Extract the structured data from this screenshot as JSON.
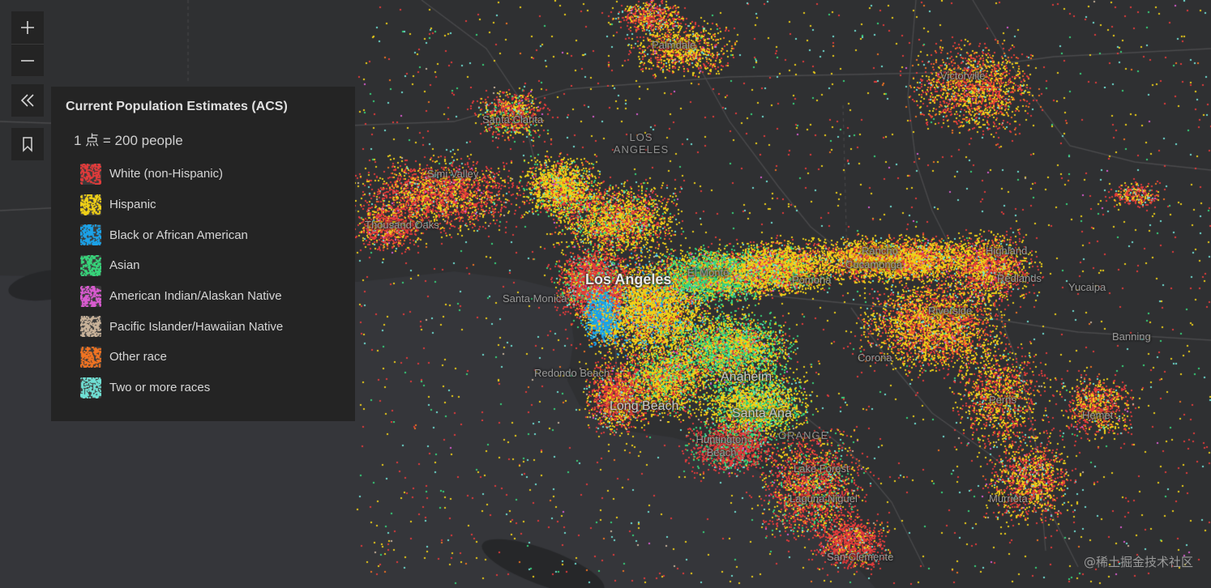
{
  "map": {
    "colors": {
      "background": "#2b2c2e",
      "land": "#2f3032",
      "ocean": "#35363a",
      "roads": "#4b4b4d",
      "white": "#e23b3b",
      "hispanic": "#f0d017",
      "black": "#1ba2e8",
      "asian": "#37d47a",
      "native": "#d95bd0",
      "pacific": "#c9b39a",
      "other": "#f07322",
      "multi": "#6fe0d4"
    },
    "labels": [
      {
        "id": "palmdale",
        "text": "Palmdale"
      },
      {
        "id": "victorville",
        "text": "Victorville"
      },
      {
        "id": "santa-clarita",
        "text": "Santa Clarita"
      },
      {
        "id": "los-angeles-region",
        "text": "LOS ANGELES"
      },
      {
        "id": "simi-valley",
        "text": "Simi Valley"
      },
      {
        "id": "thousand-oaks",
        "text": "Thousand Oaks"
      },
      {
        "id": "rancho",
        "text": "Rancho"
      },
      {
        "id": "cucamonga",
        "text": "Cucamonga"
      },
      {
        "id": "highland",
        "text": "Highland"
      },
      {
        "id": "el-monte",
        "text": "El Monte"
      },
      {
        "id": "pomona",
        "text": "Pomona"
      },
      {
        "id": "redlands",
        "text": "Redlands"
      },
      {
        "id": "yucaipa",
        "text": "Yucaipa"
      },
      {
        "id": "los-angeles",
        "text": "Los Angeles"
      },
      {
        "id": "santa-monica",
        "text": "Santa Monica"
      },
      {
        "id": "riverside",
        "text": "Riverside"
      },
      {
        "id": "banning",
        "text": "Banning"
      },
      {
        "id": "corona",
        "text": "Corona"
      },
      {
        "id": "redondo-beach",
        "text": "Redondo Beach"
      },
      {
        "id": "anaheim",
        "text": "Anaheim"
      },
      {
        "id": "perris",
        "text": "Perris"
      },
      {
        "id": "long-beach",
        "text": "Long Beach"
      },
      {
        "id": "hemet",
        "text": "Hemet"
      },
      {
        "id": "santa-ana",
        "text": "Santa Ana"
      },
      {
        "id": "huntington-beach",
        "text": "Huntington Beach"
      },
      {
        "id": "orange",
        "text": "ORANGE"
      },
      {
        "id": "lake-forest",
        "text": "Lake Forest"
      },
      {
        "id": "laguna-niguel",
        "text": "Laguna Niguel"
      },
      {
        "id": "murrieta",
        "text": "Murrieta"
      },
      {
        "id": "san-clemente",
        "text": "San Clemente"
      }
    ]
  },
  "controls": {
    "zoom_in_icon": "plus-icon",
    "zoom_out_icon": "minus-icon",
    "collapse_icon": "double-chevron-left-icon",
    "bookmark_icon": "bookmark-icon"
  },
  "legend": {
    "title": "Current Population Estimates (ACS)",
    "scale": "1 点 = 200 people",
    "items": [
      {
        "label": "White (non-Hispanic)",
        "color": "#e23b3b"
      },
      {
        "label": "Hispanic",
        "color": "#f0d017"
      },
      {
        "label": "Black or African American",
        "color": "#1ba2e8"
      },
      {
        "label": "Asian",
        "color": "#37d47a"
      },
      {
        "label": "American Indian/Alaskan Native",
        "color": "#d95bd0"
      },
      {
        "label": "Pacific Islander/Hawaiian Native",
        "color": "#c9b39a"
      },
      {
        "label": "Other race",
        "color": "#f07322"
      },
      {
        "label": "Two or more races",
        "color": "#6fe0d4"
      }
    ]
  },
  "watermark": "@稀土掘金技术社区"
}
